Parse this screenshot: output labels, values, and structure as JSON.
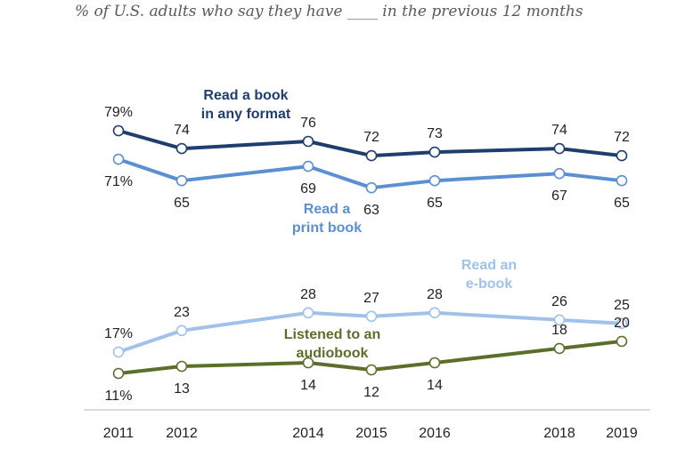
{
  "subtitle": "% of U.S. adults who say they have ____ in the previous 12 months",
  "chart_data": {
    "type": "line",
    "x": [
      "2011",
      "2012",
      "2014",
      "2015",
      "2016",
      "2018",
      "2019"
    ],
    "ylim": [
      0,
      100
    ],
    "grid": false,
    "legend": "inline labels",
    "series": [
      {
        "name": "Read a book in any format",
        "name_lines": [
          "Read a book",
          "in any format"
        ],
        "color": "#1f3d6e",
        "values": [
          79,
          74,
          76,
          72,
          73,
          74,
          72
        ],
        "value_labels": [
          "79%",
          "74",
          "76",
          "72",
          "73",
          "74",
          "72"
        ]
      },
      {
        "name": "Read a print book",
        "name_lines": [
          "Read a",
          "print book"
        ],
        "color": "#5b8fd4",
        "values": [
          71,
          65,
          69,
          63,
          65,
          67,
          65
        ],
        "value_labels": [
          "71%",
          "65",
          "69",
          "63",
          "65",
          "67",
          "65"
        ]
      },
      {
        "name": "Read an e-book",
        "name_lines": [
          "Read an",
          "e-book"
        ],
        "color": "#a0c1ea",
        "values": [
          17,
          23,
          28,
          27,
          28,
          26,
          25
        ],
        "value_labels": [
          "17%",
          "23",
          "28",
          "27",
          "28",
          "26",
          "25"
        ]
      },
      {
        "name": "Listened to an audiobook",
        "name_lines": [
          "Listened to an",
          "audiobook"
        ],
        "color": "#5b6f2a",
        "values": [
          11,
          13,
          14,
          12,
          14,
          18,
          20
        ],
        "value_labels": [
          "11%",
          "13",
          "14",
          "12",
          "14",
          "18",
          "20"
        ]
      }
    ]
  }
}
